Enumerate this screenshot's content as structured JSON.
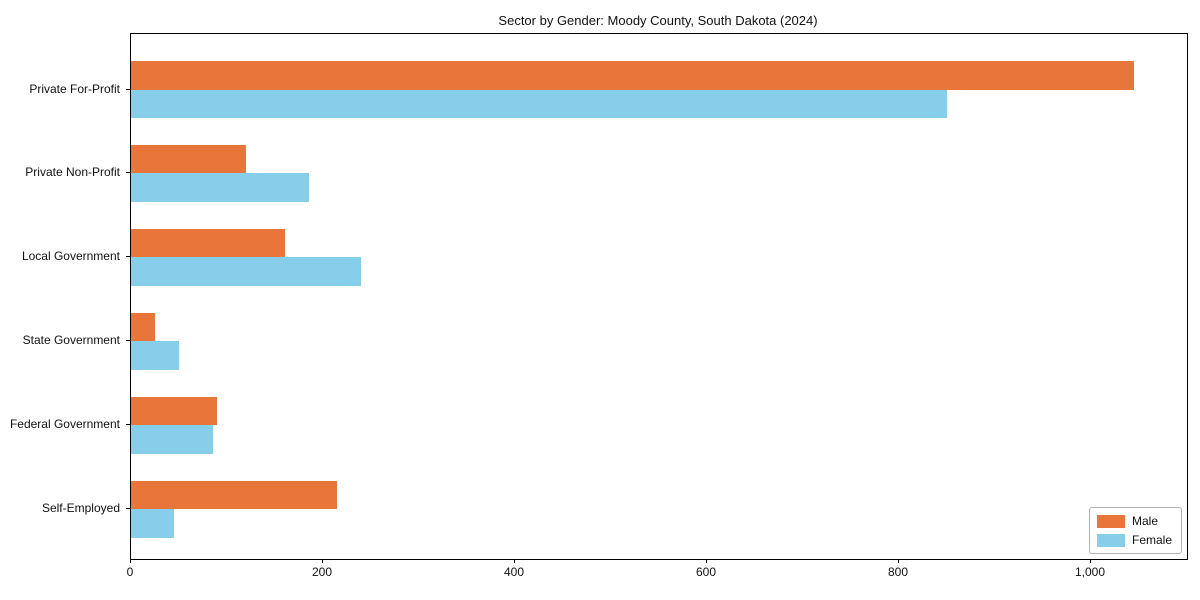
{
  "chart_data": {
    "type": "bar",
    "orientation": "horizontal",
    "title": "Sector by Gender: Moody County, South Dakota (2024)",
    "categories": [
      "Private For-Profit",
      "Private Non-Profit",
      "Local Government",
      "State Government",
      "Federal Government",
      "Self-Employed"
    ],
    "series": [
      {
        "name": "Male",
        "color": "#E8763B",
        "values": [
          1045,
          120,
          160,
          25,
          90,
          215
        ]
      },
      {
        "name": "Female",
        "color": "#87CEEB",
        "values": [
          850,
          185,
          240,
          50,
          85,
          45
        ]
      }
    ],
    "xlabel": "",
    "ylabel": "",
    "xlim": [
      0,
      1100
    ],
    "xticks": {
      "values": [
        0,
        200,
        400,
        600,
        800,
        1000
      ],
      "labels": [
        "0",
        "200",
        "400",
        "600",
        "800",
        "1,000"
      ]
    },
    "grid": false,
    "legend": {
      "position": "lower right"
    }
  },
  "colors": {
    "male": "#E8763B",
    "female": "#87CEEB",
    "spine": "#000000",
    "text": "#111111",
    "legend_border": "#b3b3b3",
    "background": "#ffffff"
  }
}
